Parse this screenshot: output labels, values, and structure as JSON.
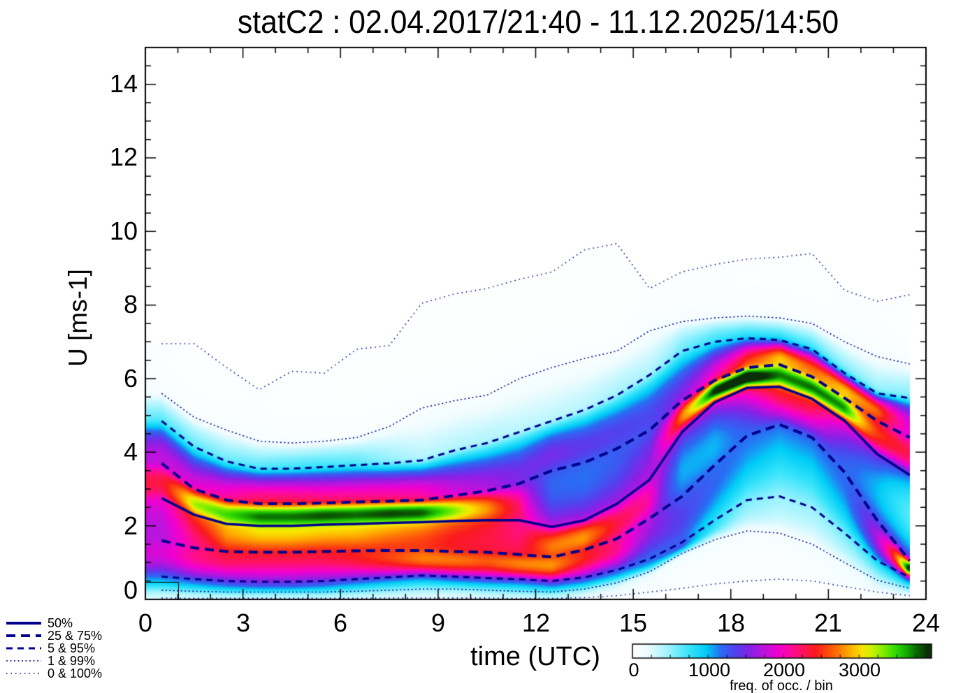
{
  "title": "statC2 : 02.04.2017/21:40 - 11.12.2025/14:50",
  "x_axis": {
    "label": "time (UTC)",
    "ticks": [
      "0",
      "3",
      "6",
      "9",
      "12",
      "15",
      "18",
      "21",
      "24"
    ]
  },
  "y_axis": {
    "label": "U [ms-1]",
    "ticks": [
      "0",
      "2",
      "4",
      "6",
      "8",
      "10",
      "12",
      "14"
    ]
  },
  "colorbar": {
    "label": "freq. of occ. / bin",
    "ticks": [
      "0",
      "1000",
      "2000",
      "3000"
    ],
    "range_max": 3960,
    "tick_interval": 250
  },
  "legend": {
    "entries": [
      {
        "label": "50%",
        "style": "solid"
      },
      {
        "label": "25 & 75%",
        "style": "dash-long"
      },
      {
        "label": "5 & 95%",
        "style": "dash"
      },
      {
        "label": "1 & 99%",
        "style": "dot"
      },
      {
        "label": "0 & 100%",
        "style": "dot-sparse"
      }
    ]
  },
  "chart_data": {
    "type": "heatmap",
    "title": "statC2 : 02.04.2017/21:40 - 11.12.2025/14:50",
    "xlabel": "time (UTC)",
    "ylabel": "U [ms-1]",
    "x_range": [
      0,
      24
    ],
    "y_range": [
      0,
      15
    ],
    "grid": false,
    "line_color": "#00008c",
    "hours": [
      0.5,
      1.5,
      2.5,
      3.5,
      4.5,
      5.5,
      6.5,
      7.5,
      8.5,
      9.5,
      10.5,
      11.5,
      12.5,
      13.5,
      14.5,
      15.5,
      16.5,
      17.5,
      18.5,
      19.5,
      20.5,
      21.5,
      22.5,
      23.5
    ],
    "percentile_levels": [
      0,
      0.01,
      0.05,
      0.25,
      0.5,
      0.75,
      0.95,
      0.99,
      1.0
    ],
    "percentiles": {
      "p0": [
        0.04,
        0.03,
        0.03,
        0.03,
        0.03,
        0.03,
        0.03,
        0.04,
        0.04,
        0.04,
        0.04,
        0.03,
        0.03,
        0.05,
        0.1,
        0.2,
        0.3,
        0.42,
        0.5,
        0.55,
        0.5,
        0.35,
        0.2,
        0.1
      ],
      "p1": [
        0.25,
        0.22,
        0.2,
        0.2,
        0.2,
        0.2,
        0.22,
        0.25,
        0.28,
        0.28,
        0.25,
        0.22,
        0.2,
        0.28,
        0.45,
        0.75,
        1.25,
        1.62,
        1.86,
        1.8,
        1.5,
        1.0,
        0.52,
        0.3
      ],
      "p5": [
        0.62,
        0.55,
        0.5,
        0.48,
        0.48,
        0.5,
        0.55,
        0.6,
        0.65,
        0.62,
        0.58,
        0.55,
        0.5,
        0.6,
        0.8,
        1.1,
        1.55,
        2.15,
        2.7,
        2.8,
        2.5,
        1.8,
        1.05,
        0.6
      ],
      "p25": [
        1.6,
        1.4,
        1.3,
        1.28,
        1.28,
        1.3,
        1.32,
        1.33,
        1.33,
        1.3,
        1.28,
        1.22,
        1.15,
        1.35,
        1.65,
        2.2,
        2.8,
        3.65,
        4.45,
        4.75,
        4.4,
        3.45,
        2.15,
        1.05
      ],
      "p50": [
        2.75,
        2.3,
        2.05,
        2.0,
        2.0,
        2.03,
        2.05,
        2.08,
        2.1,
        2.13,
        2.15,
        2.15,
        1.97,
        2.15,
        2.6,
        3.25,
        4.55,
        5.35,
        5.75,
        5.78,
        5.45,
        4.85,
        3.95,
        3.38
      ],
      "p75": [
        3.7,
        3.0,
        2.7,
        2.6,
        2.6,
        2.62,
        2.65,
        2.67,
        2.7,
        2.82,
        2.95,
        3.15,
        3.5,
        3.72,
        4.1,
        4.6,
        5.4,
        5.95,
        6.3,
        6.38,
        6.05,
        5.47,
        4.85,
        4.4
      ],
      "p95": [
        4.85,
        4.15,
        3.75,
        3.55,
        3.55,
        3.6,
        3.65,
        3.7,
        3.78,
        4.05,
        4.25,
        4.55,
        4.85,
        5.15,
        5.55,
        6.1,
        6.75,
        7.0,
        7.1,
        7.05,
        6.8,
        6.15,
        5.6,
        5.47
      ],
      "p99": [
        5.6,
        4.95,
        4.6,
        4.3,
        4.25,
        4.3,
        4.4,
        4.7,
        5.2,
        5.4,
        5.55,
        6.0,
        6.3,
        6.55,
        6.75,
        7.3,
        7.55,
        7.65,
        7.7,
        7.65,
        7.5,
        7.0,
        6.6,
        6.4
      ],
      "p100": [
        6.95,
        6.95,
        6.3,
        5.7,
        6.2,
        6.15,
        6.8,
        6.9,
        8.05,
        8.3,
        8.45,
        8.7,
        8.9,
        9.5,
        9.67,
        8.45,
        8.9,
        9.1,
        9.25,
        9.3,
        9.4,
        8.4,
        8.1,
        8.28
      ]
    },
    "freq_scale": 8200,
    "freq_max": 3900,
    "palette": [
      [
        0.0,
        "#ffffff"
      ],
      [
        0.05,
        "#eefcff"
      ],
      [
        0.12,
        "#9ff3fe"
      ],
      [
        0.19,
        "#3ae5fb"
      ],
      [
        0.25,
        "#00ccf6"
      ],
      [
        0.3,
        "#2a6cf3"
      ],
      [
        0.35,
        "#5440ee"
      ],
      [
        0.4,
        "#8a20e6"
      ],
      [
        0.45,
        "#c212dc"
      ],
      [
        0.49,
        "#ee00d2"
      ],
      [
        0.53,
        "#fb0aa4"
      ],
      [
        0.57,
        "#ff1268"
      ],
      [
        0.62,
        "#fa1a1e"
      ],
      [
        0.66,
        "#fc480e"
      ],
      [
        0.7,
        "#fd7a06"
      ],
      [
        0.74,
        "#feb100"
      ],
      [
        0.78,
        "#f8e600"
      ],
      [
        0.81,
        "#cdf300"
      ],
      [
        0.85,
        "#80ee00"
      ],
      [
        0.89,
        "#35dc00"
      ],
      [
        0.93,
        "#14ab00"
      ],
      [
        0.96,
        "#0c6f03"
      ],
      [
        1.0,
        "#0a2e07"
      ]
    ]
  }
}
